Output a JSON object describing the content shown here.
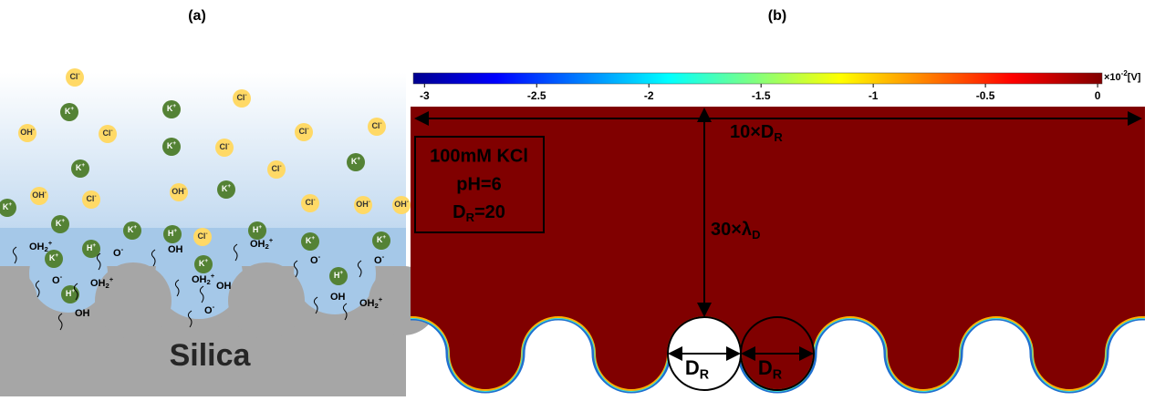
{
  "panel_a": {
    "label": "(a)",
    "substrate": "Silica",
    "species": {
      "cl": {
        "symbol": "Cl",
        "charge": "-"
      },
      "k": {
        "symbol": "K",
        "charge": "+"
      },
      "oh": {
        "symbol": "OH",
        "charge": "-"
      },
      "h": {
        "symbol": "H",
        "charge": "+"
      },
      "oh2": {
        "symbol": "OH",
        "sub": "2",
        "charge": "+"
      },
      "o": {
        "symbol": "O",
        "charge": "-"
      },
      "sioh": {
        "symbol": "OH"
      }
    }
  },
  "panel_b": {
    "label": "(b)",
    "colorbar": {
      "ticks": [
        -3,
        -2.5,
        -2,
        -1.5,
        -1,
        -0.5,
        0
      ],
      "range": [
        -3.05,
        0.02
      ],
      "unit_prefix": "×10",
      "unit_exp": "-2",
      "unit": "[V]"
    },
    "conditions": [
      "100mM KCl",
      "pH=6",
      {
        "text": "D",
        "sub": "R",
        "tail": "=20"
      }
    ],
    "width_label": {
      "text": "10×D",
      "sub": "R"
    },
    "height_label": {
      "text": "30×λ",
      "sub": "D"
    },
    "diameter_label": {
      "text": "D",
      "sub": "R"
    }
  }
}
